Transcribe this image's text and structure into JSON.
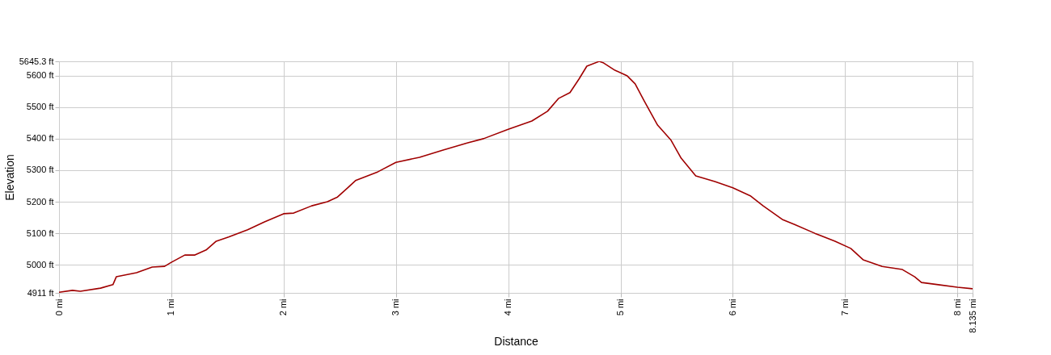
{
  "chart_data": {
    "type": "line",
    "xlabel": "Distance",
    "ylabel": "Elevation",
    "grid": true,
    "line_style": "solid",
    "xlim": [
      0,
      8.135
    ],
    "ylim": [
      4911,
      5645.3
    ],
    "xticks": [
      {
        "value": 0,
        "label": "0 mi"
      },
      {
        "value": 1,
        "label": "1 mi"
      },
      {
        "value": 2,
        "label": "2 mi"
      },
      {
        "value": 3,
        "label": "3 mi"
      },
      {
        "value": 4,
        "label": "4 mi"
      },
      {
        "value": 5,
        "label": "5 mi"
      },
      {
        "value": 6,
        "label": "6 mi"
      },
      {
        "value": 7,
        "label": "7 mi"
      },
      {
        "value": 8,
        "label": "8 mi"
      },
      {
        "value": 8.135,
        "label": "8.135 mi"
      }
    ],
    "yticks": [
      {
        "value": 4911,
        "label": "4911 ft"
      },
      {
        "value": 5000,
        "label": "5000 ft"
      },
      {
        "value": 5100,
        "label": "5100 ft"
      },
      {
        "value": 5200,
        "label": "5200 ft"
      },
      {
        "value": 5300,
        "label": "5300 ft"
      },
      {
        "value": 5400,
        "label": "5400 ft"
      },
      {
        "value": 5500,
        "label": "5500 ft"
      },
      {
        "value": 5600,
        "label": "5600 ft"
      },
      {
        "value": 5645.3,
        "label": "5645.3 ft"
      }
    ],
    "x": [
      0,
      0.12,
      0.19,
      0.37,
      0.48,
      0.51,
      0.69,
      0.83,
      0.94,
      1.0,
      1.12,
      1.21,
      1.31,
      1.4,
      1.51,
      1.68,
      1.83,
      2.0,
      2.09,
      2.25,
      2.39,
      2.48,
      2.57,
      2.64,
      2.84,
      3.0,
      3.21,
      3.42,
      3.64,
      3.78,
      4.0,
      4.21,
      4.35,
      4.45,
      4.55,
      4.63,
      4.7,
      4.81,
      4.85,
      4.95,
      5.06,
      5.13,
      5.21,
      5.33,
      5.45,
      5.54,
      5.67,
      5.84,
      6.0,
      6.16,
      6.27,
      6.44,
      6.55,
      6.73,
      6.91,
      7.05,
      7.16,
      7.33,
      7.51,
      7.62,
      7.68,
      7.83,
      8.0,
      8.135
    ],
    "series": [
      {
        "color": "#a00000",
        "values": [
          4913,
          4919,
          4916,
          4926,
          4937,
          4962,
          4975,
          4993,
          4995,
          5008,
          5031,
          5031,
          5047,
          5075,
          5088,
          5111,
          5136,
          5162,
          5164,
          5187,
          5200,
          5215,
          5244,
          5267,
          5295,
          5325,
          5341,
          5364,
          5387,
          5400,
          5430,
          5456,
          5487,
          5528,
          5546,
          5589,
          5630,
          5645,
          5640,
          5617,
          5599,
          5574,
          5520,
          5443,
          5395,
          5338,
          5282,
          5264,
          5244,
          5218,
          5187,
          5144,
          5128,
          5100,
          5075,
          5052,
          5016,
          4995,
          4985,
          4962,
          4944,
          4937,
          4929,
          4924
        ]
      }
    ]
  }
}
